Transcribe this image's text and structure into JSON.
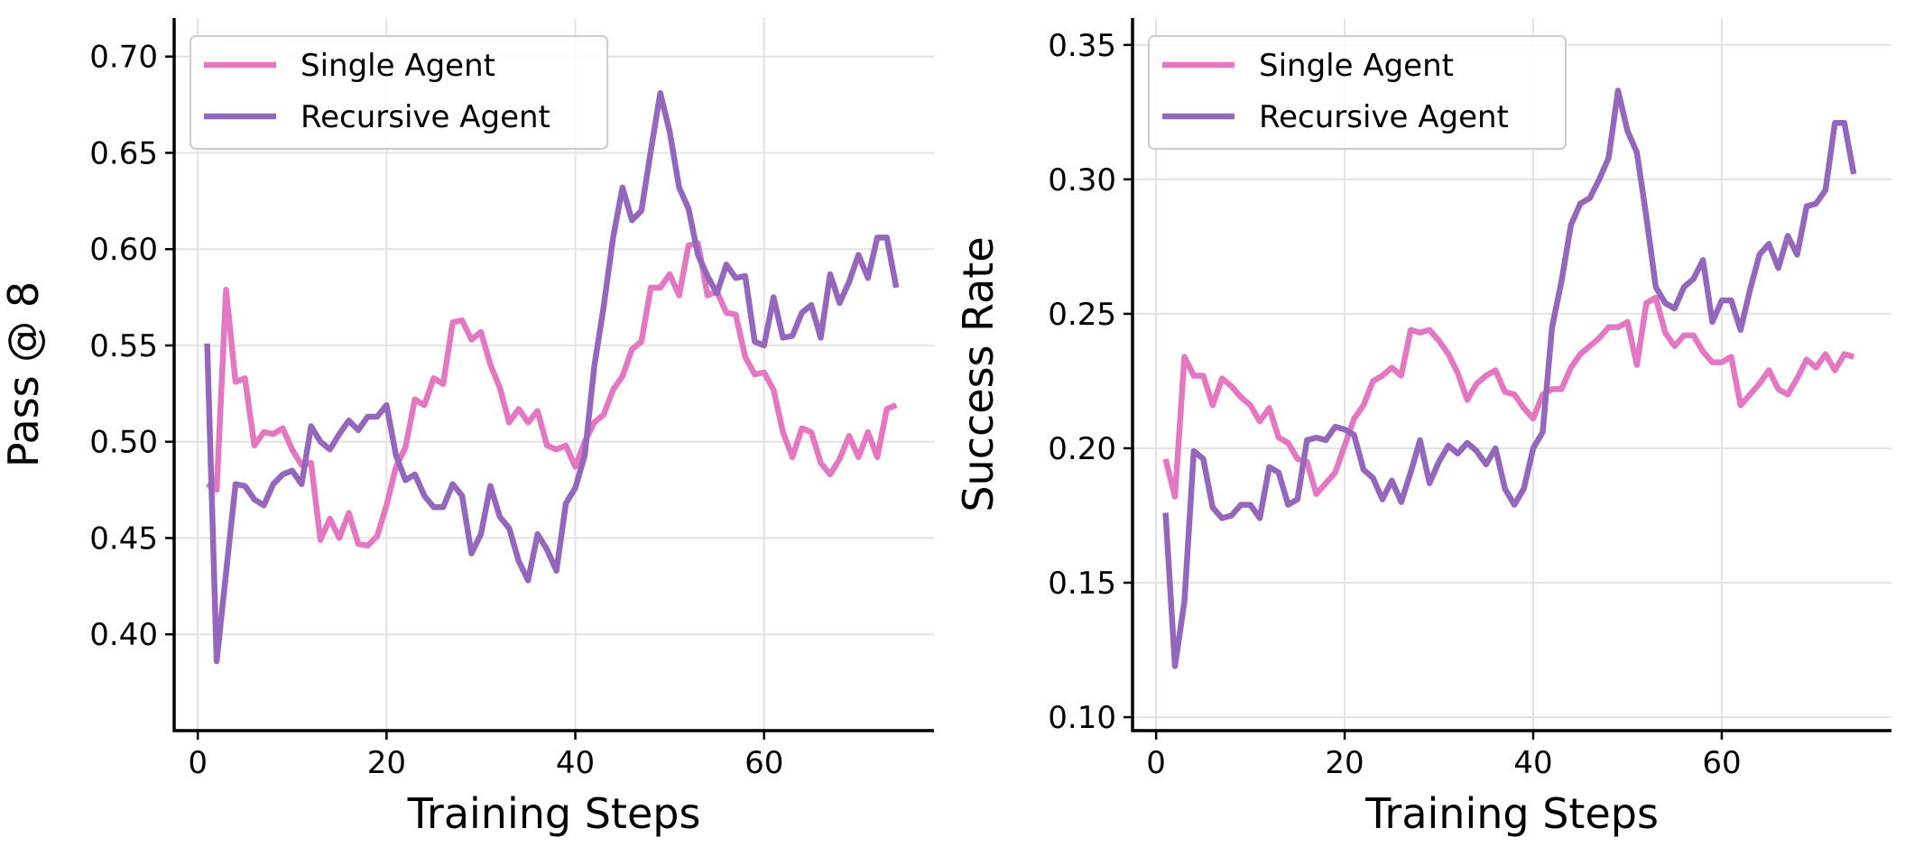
{
  "chart_data": [
    {
      "type": "line",
      "xlabel": "Training Steps",
      "ylabel": "Pass @ 8",
      "xlim": [
        -2.5,
        78
      ],
      "ylim": [
        0.35,
        0.72
      ],
      "xticks": [
        0,
        20,
        40,
        60
      ],
      "yticks": [
        0.4,
        0.45,
        0.5,
        0.55,
        0.6,
        0.65,
        0.7
      ],
      "grid": true,
      "legend": "upper-left",
      "x": [
        1,
        2,
        3,
        4,
        5,
        6,
        7,
        8,
        9,
        10,
        11,
        12,
        13,
        14,
        15,
        16,
        17,
        18,
        19,
        20,
        21,
        22,
        23,
        24,
        25,
        26,
        27,
        28,
        29,
        30,
        31,
        32,
        33,
        34,
        35,
        36,
        37,
        38,
        39,
        40,
        41,
        42,
        43,
        44,
        45,
        46,
        47,
        48,
        49,
        50,
        51,
        52,
        53,
        54,
        55,
        56,
        57,
        58,
        59,
        60,
        61,
        62,
        63,
        64,
        65,
        66,
        67,
        68,
        69,
        70,
        71,
        72,
        73,
        74
      ],
      "series": [
        {
          "name": "Single Agent",
          "color": "#e377c2",
          "values": [
            0.478,
            0.475,
            0.579,
            0.531,
            0.533,
            0.498,
            0.505,
            0.504,
            0.507,
            0.496,
            0.488,
            0.489,
            0.449,
            0.46,
            0.45,
            0.463,
            0.447,
            0.446,
            0.451,
            0.467,
            0.487,
            0.497,
            0.522,
            0.519,
            0.533,
            0.53,
            0.562,
            0.563,
            0.553,
            0.557,
            0.54,
            0.528,
            0.51,
            0.517,
            0.51,
            0.516,
            0.498,
            0.496,
            0.498,
            0.487,
            0.5,
            0.51,
            0.514,
            0.527,
            0.534,
            0.548,
            0.552,
            0.58,
            0.58,
            0.587,
            0.576,
            0.602,
            0.603,
            0.576,
            0.578,
            0.567,
            0.566,
            0.544,
            0.535,
            0.536,
            0.527,
            0.505,
            0.492,
            0.507,
            0.505,
            0.489,
            0.483,
            0.491,
            0.503,
            0.492,
            0.505,
            0.492,
            0.517,
            0.519
          ]
        },
        {
          "name": "Recursive Agent",
          "color": "#9467bd",
          "values": [
            0.551,
            0.386,
            0.432,
            0.478,
            0.477,
            0.47,
            0.467,
            0.478,
            0.483,
            0.485,
            0.478,
            0.508,
            0.5,
            0.496,
            0.504,
            0.511,
            0.506,
            0.513,
            0.513,
            0.519,
            0.493,
            0.48,
            0.483,
            0.472,
            0.466,
            0.466,
            0.478,
            0.472,
            0.442,
            0.452,
            0.477,
            0.461,
            0.455,
            0.438,
            0.428,
            0.452,
            0.444,
            0.433,
            0.468,
            0.476,
            0.493,
            0.539,
            0.57,
            0.606,
            0.632,
            0.615,
            0.62,
            0.651,
            0.681,
            0.661,
            0.632,
            0.621,
            0.597,
            0.586,
            0.577,
            0.592,
            0.585,
            0.586,
            0.552,
            0.55,
            0.575,
            0.554,
            0.555,
            0.567,
            0.571,
            0.554,
            0.587,
            0.572,
            0.583,
            0.597,
            0.585,
            0.606,
            0.606,
            0.58
          ]
        }
      ]
    },
    {
      "type": "line",
      "xlabel": "Training Steps",
      "ylabel": "Success Rate",
      "xlim": [
        -2.5,
        78
      ],
      "ylim": [
        0.095,
        0.36
      ],
      "xticks": [
        0,
        20,
        40,
        60
      ],
      "yticks": [
        0.1,
        0.15,
        0.2,
        0.25,
        0.3,
        0.35
      ],
      "grid": true,
      "legend": "upper-left",
      "x": [
        1,
        2,
        3,
        4,
        5,
        6,
        7,
        8,
        9,
        10,
        11,
        12,
        13,
        14,
        15,
        16,
        17,
        18,
        19,
        20,
        21,
        22,
        23,
        24,
        25,
        26,
        27,
        28,
        29,
        30,
        31,
        32,
        33,
        34,
        35,
        36,
        37,
        38,
        39,
        40,
        41,
        42,
        43,
        44,
        45,
        46,
        47,
        48,
        49,
        50,
        51,
        52,
        53,
        54,
        55,
        56,
        57,
        58,
        59,
        60,
        61,
        62,
        63,
        64,
        65,
        66,
        67,
        68,
        69,
        70,
        71,
        72,
        73,
        74
      ],
      "series": [
        {
          "name": "Single Agent",
          "color": "#e377c2",
          "values": [
            0.196,
            0.182,
            0.234,
            0.227,
            0.227,
            0.216,
            0.226,
            0.223,
            0.219,
            0.216,
            0.21,
            0.215,
            0.204,
            0.202,
            0.196,
            0.195,
            0.183,
            0.187,
            0.191,
            0.201,
            0.211,
            0.216,
            0.225,
            0.227,
            0.23,
            0.227,
            0.244,
            0.243,
            0.244,
            0.24,
            0.235,
            0.228,
            0.218,
            0.224,
            0.227,
            0.229,
            0.221,
            0.22,
            0.215,
            0.211,
            0.22,
            0.222,
            0.222,
            0.23,
            0.235,
            0.238,
            0.241,
            0.245,
            0.245,
            0.247,
            0.231,
            0.254,
            0.256,
            0.243,
            0.238,
            0.242,
            0.242,
            0.236,
            0.232,
            0.232,
            0.234,
            0.216,
            0.22,
            0.224,
            0.229,
            0.222,
            0.22,
            0.226,
            0.233,
            0.23,
            0.235,
            0.229,
            0.235,
            0.234
          ]
        },
        {
          "name": "Recursive Agent",
          "color": "#9467bd",
          "values": [
            0.176,
            0.119,
            0.143,
            0.199,
            0.196,
            0.178,
            0.174,
            0.175,
            0.179,
            0.179,
            0.174,
            0.193,
            0.191,
            0.179,
            0.181,
            0.203,
            0.204,
            0.203,
            0.208,
            0.207,
            0.205,
            0.192,
            0.189,
            0.181,
            0.188,
            0.18,
            0.191,
            0.203,
            0.187,
            0.195,
            0.201,
            0.198,
            0.202,
            0.199,
            0.194,
            0.2,
            0.185,
            0.179,
            0.185,
            0.2,
            0.206,
            0.245,
            0.262,
            0.283,
            0.291,
            0.293,
            0.3,
            0.308,
            0.333,
            0.318,
            0.31,
            0.286,
            0.26,
            0.254,
            0.252,
            0.26,
            0.263,
            0.27,
            0.247,
            0.255,
            0.255,
            0.244,
            0.259,
            0.272,
            0.276,
            0.267,
            0.279,
            0.272,
            0.29,
            0.291,
            0.296,
            0.321,
            0.321,
            0.302
          ]
        }
      ]
    }
  ]
}
